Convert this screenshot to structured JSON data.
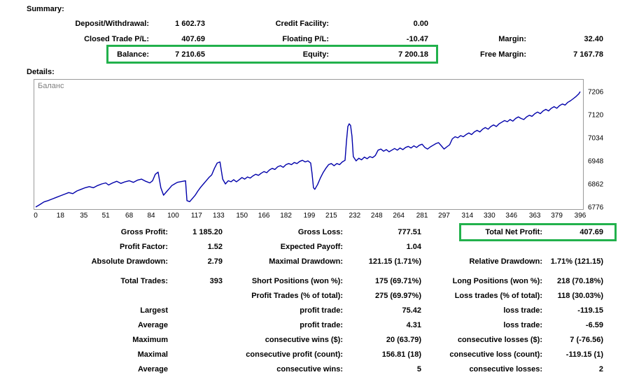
{
  "annotation": {
    "color": "#22b14c"
  },
  "summary": {
    "title": "Summary:",
    "rows": [
      [
        "Deposit/Withdrawal:",
        "1 602.73",
        "Credit Facility:",
        "0.00",
        "",
        ""
      ],
      [
        "Closed Trade P/L:",
        "407.69",
        "Floating P/L:",
        "-10.47",
        "Margin:",
        "32.40"
      ],
      [
        "Balance:",
        "7 210.65",
        "Equity:",
        "7 200.18",
        "Free Margin:",
        "7 167.78"
      ]
    ],
    "highlight_row": 2
  },
  "details": {
    "title": "Details:",
    "rows": [
      [
        "Gross Profit:",
        "1 185.20",
        "Gross Loss:",
        "777.51",
        "Total Net Profit:",
        "407.69"
      ],
      [
        "Profit Factor:",
        "1.52",
        "Expected Payoff:",
        "1.04",
        "",
        ""
      ],
      [
        "Absolute Drawdown:",
        "2.79",
        "Maximal Drawdown:",
        "121.15 (1.71%)",
        "Relative Drawdown:",
        "1.71% (121.15)"
      ],
      [
        "Total Trades:",
        "393",
        "Short Positions (won %):",
        "175 (69.71%)",
        "Long Positions (won %):",
        "218 (70.18%)"
      ],
      [
        "",
        "",
        "Profit Trades (% of total):",
        "275 (69.97%)",
        "Loss trades (% of total):",
        "118 (30.03%)"
      ],
      [
        "Largest",
        "",
        "profit trade:",
        "75.42",
        "loss trade:",
        "-119.15"
      ],
      [
        "Average",
        "",
        "profit trade:",
        "4.31",
        "loss trade:",
        "-6.59"
      ],
      [
        "Maximum",
        "",
        "consecutive wins ($):",
        "20 (63.79)",
        "consecutive losses ($):",
        "7 (-76.56)"
      ],
      [
        "Maximal",
        "",
        "consecutive profit (count):",
        "156.81 (18)",
        "consecutive loss (count):",
        "-119.15 (1)"
      ],
      [
        "Average",
        "",
        "consecutive wins:",
        "5",
        "consecutive losses:",
        "2"
      ]
    ],
    "highlight_row": 0
  },
  "chart_data": {
    "type": "line",
    "title": "Баланс",
    "legend": [
      "Баланс"
    ],
    "xlabel": "",
    "ylabel": "",
    "x_ticks": [
      0,
      18,
      35,
      51,
      68,
      84,
      100,
      117,
      133,
      150,
      166,
      182,
      199,
      215,
      232,
      248,
      264,
      281,
      297,
      314,
      330,
      346,
      363,
      379,
      396
    ],
    "y_ticks": [
      7206,
      7120,
      7034,
      6948,
      6862,
      6776
    ],
    "xlim": [
      0,
      398
    ],
    "ylim": [
      6768,
      7250
    ],
    "grid": false,
    "legend_position": "top-left",
    "line_color": "#0000aa",
    "points": [
      [
        0,
        6776
      ],
      [
        3,
        6785
      ],
      [
        6,
        6795
      ],
      [
        9,
        6800
      ],
      [
        12,
        6806
      ],
      [
        15,
        6812
      ],
      [
        18,
        6818
      ],
      [
        21,
        6824
      ],
      [
        24,
        6830
      ],
      [
        27,
        6826
      ],
      [
        30,
        6836
      ],
      [
        33,
        6842
      ],
      [
        36,
        6848
      ],
      [
        39,
        6852
      ],
      [
        42,
        6848
      ],
      [
        45,
        6856
      ],
      [
        48,
        6862
      ],
      [
        51,
        6866
      ],
      [
        53,
        6858
      ],
      [
        56,
        6866
      ],
      [
        59,
        6872
      ],
      [
        62,
        6864
      ],
      [
        65,
        6870
      ],
      [
        68,
        6874
      ],
      [
        71,
        6868
      ],
      [
        74,
        6876
      ],
      [
        77,
        6880
      ],
      [
        80,
        6872
      ],
      [
        83,
        6866
      ],
      [
        85,
        6874
      ],
      [
        87,
        6898
      ],
      [
        89,
        6906
      ],
      [
        91,
        6848
      ],
      [
        93,
        6820
      ],
      [
        95,
        6832
      ],
      [
        97,
        6844
      ],
      [
        99,
        6856
      ],
      [
        101,
        6862
      ],
      [
        103,
        6868
      ],
      [
        105,
        6870
      ],
      [
        107,
        6872
      ],
      [
        109,
        6874
      ],
      [
        110,
        6800
      ],
      [
        112,
        6796
      ],
      [
        114,
        6808
      ],
      [
        116,
        6820
      ],
      [
        118,
        6836
      ],
      [
        120,
        6850
      ],
      [
        122,
        6862
      ],
      [
        124,
        6874
      ],
      [
        126,
        6886
      ],
      [
        128,
        6896
      ],
      [
        130,
        6920
      ],
      [
        132,
        6940
      ],
      [
        134,
        6944
      ],
      [
        136,
        6880
      ],
      [
        138,
        6862
      ],
      [
        140,
        6874
      ],
      [
        142,
        6870
      ],
      [
        144,
        6878
      ],
      [
        146,
        6870
      ],
      [
        148,
        6878
      ],
      [
        150,
        6886
      ],
      [
        152,
        6880
      ],
      [
        154,
        6888
      ],
      [
        156,
        6884
      ],
      [
        158,
        6892
      ],
      [
        160,
        6898
      ],
      [
        162,
        6894
      ],
      [
        164,
        6902
      ],
      [
        166,
        6908
      ],
      [
        168,
        6904
      ],
      [
        170,
        6914
      ],
      [
        172,
        6920
      ],
      [
        174,
        6916
      ],
      [
        176,
        6926
      ],
      [
        178,
        6930
      ],
      [
        180,
        6924
      ],
      [
        182,
        6934
      ],
      [
        184,
        6938
      ],
      [
        186,
        6934
      ],
      [
        188,
        6942
      ],
      [
        190,
        6938
      ],
      [
        192,
        6946
      ],
      [
        194,
        6950
      ],
      [
        196,
        6944
      ],
      [
        198,
        6948
      ],
      [
        200,
        6940
      ],
      [
        201,
        6900
      ],
      [
        202,
        6848
      ],
      [
        203,
        6842
      ],
      [
        205,
        6860
      ],
      [
        207,
        6884
      ],
      [
        209,
        6904
      ],
      [
        211,
        6920
      ],
      [
        213,
        6934
      ],
      [
        215,
        6938
      ],
      [
        217,
        6930
      ],
      [
        219,
        6938
      ],
      [
        221,
        6934
      ],
      [
        223,
        6944
      ],
      [
        225,
        6950
      ],
      [
        226,
        7020
      ],
      [
        227,
        7076
      ],
      [
        228,
        7086
      ],
      [
        229,
        7080
      ],
      [
        230,
        7040
      ],
      [
        231,
        6964
      ],
      [
        233,
        6948
      ],
      [
        235,
        6958
      ],
      [
        237,
        6952
      ],
      [
        239,
        6962
      ],
      [
        241,
        6956
      ],
      [
        243,
        6964
      ],
      [
        245,
        6960
      ],
      [
        247,
        6968
      ],
      [
        249,
        6988
      ],
      [
        251,
        6992
      ],
      [
        253,
        6984
      ],
      [
        255,
        6990
      ],
      [
        257,
        6982
      ],
      [
        259,
        6988
      ],
      [
        261,
        6994
      ],
      [
        263,
        6988
      ],
      [
        265,
        6996
      ],
      [
        267,
        6990
      ],
      [
        269,
        6998
      ],
      [
        271,
        7002
      ],
      [
        273,
        6996
      ],
      [
        275,
        7004
      ],
      [
        277,
        6998
      ],
      [
        279,
        7006
      ],
      [
        281,
        7010
      ],
      [
        283,
        6998
      ],
      [
        285,
        6992
      ],
      [
        287,
        7000
      ],
      [
        289,
        7006
      ],
      [
        291,
        7012
      ],
      [
        293,
        7016
      ],
      [
        295,
        7004
      ],
      [
        297,
        6992
      ],
      [
        299,
        7000
      ],
      [
        301,
        7008
      ],
      [
        303,
        7030
      ],
      [
        305,
        7038
      ],
      [
        307,
        7034
      ],
      [
        309,
        7042
      ],
      [
        311,
        7038
      ],
      [
        313,
        7046
      ],
      [
        315,
        7052
      ],
      [
        317,
        7046
      ],
      [
        319,
        7056
      ],
      [
        321,
        7062
      ],
      [
        323,
        7056
      ],
      [
        325,
        7066
      ],
      [
        327,
        7072
      ],
      [
        329,
        7066
      ],
      [
        331,
        7076
      ],
      [
        333,
        7082
      ],
      [
        335,
        7076
      ],
      [
        337,
        7086
      ],
      [
        339,
        7092
      ],
      [
        341,
        7098
      ],
      [
        343,
        7094
      ],
      [
        345,
        7102
      ],
      [
        347,
        7096
      ],
      [
        349,
        7106
      ],
      [
        351,
        7112
      ],
      [
        353,
        7106
      ],
      [
        355,
        7102
      ],
      [
        357,
        7112
      ],
      [
        359,
        7118
      ],
      [
        361,
        7114
      ],
      [
        363,
        7124
      ],
      [
        365,
        7130
      ],
      [
        367,
        7124
      ],
      [
        369,
        7134
      ],
      [
        371,
        7140
      ],
      [
        373,
        7134
      ],
      [
        375,
        7144
      ],
      [
        377,
        7150
      ],
      [
        379,
        7144
      ],
      [
        381,
        7154
      ],
      [
        383,
        7160
      ],
      [
        385,
        7156
      ],
      [
        387,
        7166
      ],
      [
        389,
        7172
      ],
      [
        391,
        7180
      ],
      [
        393,
        7188
      ],
      [
        395,
        7198
      ],
      [
        396,
        7206
      ]
    ]
  }
}
